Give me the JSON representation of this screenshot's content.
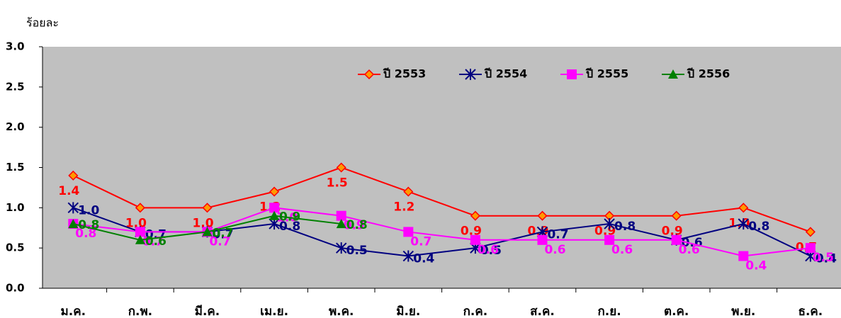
{
  "chart_data": {
    "type": "line",
    "y_label": "ร้อยละ",
    "categories": [
      "ม.ค.",
      "ก.พ.",
      "มี.ค.",
      "เม.ย.",
      "พ.ค.",
      "มิ.ย.",
      "ก.ค.",
      "ส.ค.",
      "ก.ย.",
      "ต.ค.",
      "พ.ย.",
      "ธ.ค."
    ],
    "ylim": [
      0,
      3
    ],
    "yticks": [
      {
        "value": 0,
        "label": "0.0"
      },
      0.5,
      {
        "value": 1,
        "label": "1.0"
      },
      1.5,
      {
        "value": 2,
        "label": "2.0"
      },
      2.5,
      {
        "value": 3,
        "label": "3.0"
      }
    ],
    "legend": "top",
    "series": [
      {
        "name": "ปี 2553",
        "color": "#ff0000",
        "marker": "diamond",
        "values": [
          1.4,
          1.0,
          1.0,
          1.2,
          1.5,
          1.2,
          0.9,
          0.9,
          0.9,
          0.9,
          1.0,
          0.7
        ],
        "value_labels": [
          "1.4",
          "1.0",
          "1.0",
          "1.2",
          "1.5",
          "1.2",
          "0.9",
          "0.9",
          "0.9",
          "0.9",
          "1.0",
          "0.7"
        ]
      },
      {
        "name": "ปี 2554",
        "color": "#000080",
        "marker": "star",
        "values": [
          1.0,
          0.7,
          0.7,
          0.8,
          0.5,
          0.4,
          0.5,
          0.7,
          0.8,
          0.6,
          0.8,
          0.4
        ],
        "value_labels": [
          "1.0",
          "0.7",
          "0.7",
          "0.8",
          "0.5",
          "0.4",
          "0.5",
          "0.7",
          "0.8",
          "0.6",
          "0.8",
          "0.4"
        ]
      },
      {
        "name": "ปี 2555",
        "color": "#ff00ff",
        "marker": "square",
        "values": [
          0.8,
          0.7,
          0.7,
          1.0,
          0.9,
          0.7,
          0.6,
          0.6,
          0.6,
          0.6,
          0.4,
          0.5
        ],
        "value_labels": [
          "0.8",
          "0.7",
          "0.7",
          "1.0",
          "0.9",
          "0.7",
          "0.6",
          "0.6",
          "0.6",
          "0.6",
          "0.4",
          "0.5"
        ]
      },
      {
        "name": "ปี 2556",
        "color": "#008000",
        "marker": "triangle",
        "values": [
          0.8,
          0.6,
          0.7,
          0.9,
          0.8,
          null,
          null,
          null,
          null,
          null,
          null,
          null
        ],
        "value_labels": [
          "0.8",
          "0.6",
          "0.7",
          "0.9",
          "0.8",
          null,
          null,
          null,
          null,
          null,
          null,
          null
        ]
      }
    ]
  }
}
